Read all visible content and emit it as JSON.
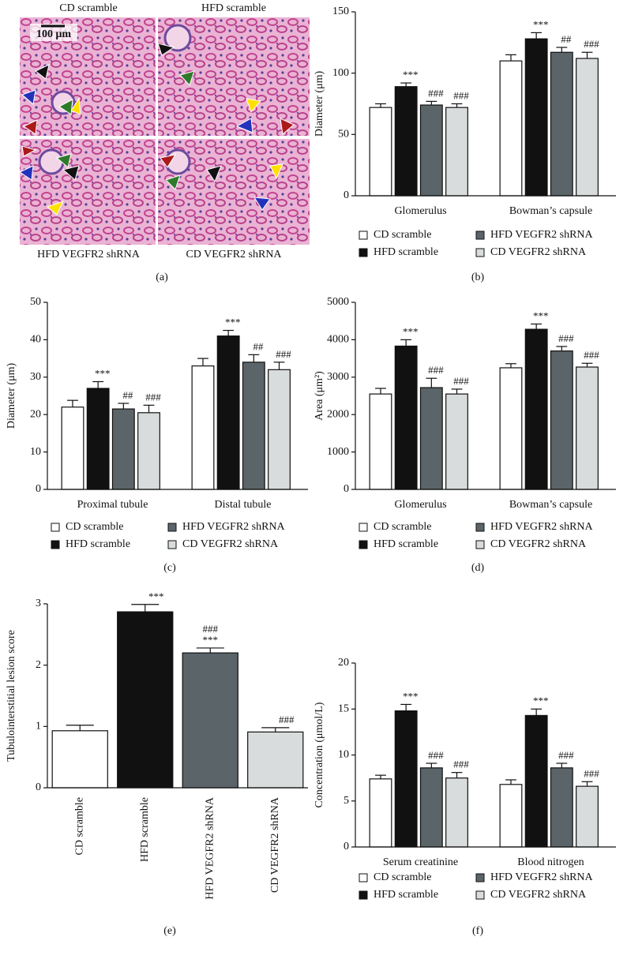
{
  "figure_a": {
    "labels": [
      "CD scramble",
      "HFD scramble",
      "HFD VEGFR2 shRNA",
      "CD VEGFR2 shRNA"
    ],
    "scale_bar": "100 μm",
    "caption": "(a)"
  },
  "chart_data": [
    {
      "type": "grouped_bar",
      "caption": "(b)",
      "y_label": "Diameter (μm)",
      "categories": [
        "Glomerulus",
        "Bowman’s capsule"
      ],
      "ylim": [
        0,
        150
      ],
      "yticks": [
        0,
        50,
        100,
        150
      ],
      "legend": "bottom",
      "series": [
        {
          "name": "CD scramble",
          "color": "#ffffff",
          "values": [
            72,
            110
          ],
          "errors": [
            3,
            5
          ]
        },
        {
          "name": "HFD scramble",
          "color": "#111111",
          "values": [
            89,
            128
          ],
          "errors": [
            3,
            5
          ],
          "annotations": [
            [
              "***"
            ],
            [
              "***"
            ]
          ]
        },
        {
          "name": "HFD VEGFR2 shRNA",
          "color": "#5a6469",
          "values": [
            74,
            117
          ],
          "errors": [
            3,
            4
          ],
          "annotations": [
            [
              "###"
            ],
            [
              "##"
            ]
          ]
        },
        {
          "name": "CD VEGFR2 shRNA",
          "color": "#d8dcdc",
          "values": [
            72,
            112
          ],
          "errors": [
            3,
            5
          ],
          "annotations": [
            [
              "###"
            ],
            [
              "###"
            ]
          ]
        }
      ]
    },
    {
      "type": "grouped_bar",
      "caption": "(c)",
      "y_label": "Diameter (μm)",
      "categories": [
        "Proximal tubule",
        "Distal tubule"
      ],
      "ylim": [
        0,
        50
      ],
      "yticks": [
        0,
        10,
        20,
        30,
        40,
        50
      ],
      "legend": "bottom",
      "series": [
        {
          "name": "CD scramble",
          "color": "#ffffff",
          "values": [
            22,
            33
          ],
          "errors": [
            1.8,
            2
          ]
        },
        {
          "name": "HFD scramble",
          "color": "#111111",
          "values": [
            27,
            41
          ],
          "errors": [
            1.8,
            1.5
          ],
          "annotations": [
            [
              "***"
            ],
            [
              "***"
            ]
          ]
        },
        {
          "name": "HFD VEGFR2 shRNA",
          "color": "#5a6469",
          "values": [
            21.5,
            34
          ],
          "errors": [
            1.5,
            2
          ],
          "annotations": [
            [
              "##"
            ],
            [
              "##"
            ]
          ]
        },
        {
          "name": "CD VEGFR2 shRNA",
          "color": "#d8dcdc",
          "values": [
            20.5,
            32
          ],
          "errors": [
            2,
            2
          ],
          "annotations": [
            [
              "###"
            ],
            [
              "###"
            ]
          ]
        }
      ]
    },
    {
      "type": "grouped_bar",
      "caption": "(d)",
      "y_label": "Area (μm²)",
      "categories": [
        "Glomerulus",
        "Bowman’s capsule"
      ],
      "ylim": [
        0,
        5000
      ],
      "yticks": [
        0,
        1000,
        2000,
        3000,
        4000,
        5000
      ],
      "legend": "bottom",
      "series": [
        {
          "name": "CD scramble",
          "color": "#ffffff",
          "values": [
            2550,
            3250
          ],
          "errors": [
            150,
            110
          ]
        },
        {
          "name": "HFD scramble",
          "color": "#111111",
          "values": [
            3830,
            4280
          ],
          "errors": [
            170,
            140
          ],
          "annotations": [
            [
              "***"
            ],
            [
              "***"
            ]
          ]
        },
        {
          "name": "HFD VEGFR2 shRNA",
          "color": "#5a6469",
          "values": [
            2720,
            3700
          ],
          "errors": [
            250,
            120
          ],
          "annotations": [
            [
              "###"
            ],
            [
              "###"
            ]
          ]
        },
        {
          "name": "CD VEGFR2 shRNA",
          "color": "#d8dcdc",
          "values": [
            2550,
            3270
          ],
          "errors": [
            130,
            100
          ],
          "annotations": [
            [
              "###"
            ],
            [
              "###"
            ]
          ]
        }
      ]
    },
    {
      "type": "bar",
      "caption": "(e)",
      "y_label": "Tubulointerstitial lesion score",
      "categories": [
        "CD scramble",
        "HFD scramble",
        "HFD VEGFR2 shRNA",
        "CD VEGFR2 shRNA"
      ],
      "values": [
        0.93,
        2.87,
        2.2,
        0.91
      ],
      "errors": [
        0.09,
        0.12,
        0.08,
        0.07
      ],
      "colors": [
        "#ffffff",
        "#111111",
        "#5a6469",
        "#d8dcdc"
      ],
      "annotations": [
        [],
        [
          "***"
        ],
        [
          "###",
          "***"
        ],
        [
          "###"
        ]
      ],
      "ylim": [
        0,
        3
      ],
      "yticks": [
        0,
        1,
        2,
        3
      ]
    },
    {
      "type": "grouped_bar",
      "caption": "(f)",
      "y_label": "Concentration (μmol/L)",
      "categories": [
        "Serum creatinine",
        "Blood nitrogen"
      ],
      "ylim": [
        0,
        20
      ],
      "yticks": [
        0,
        5,
        10,
        15,
        20
      ],
      "legend": "bottom",
      "series": [
        {
          "name": "CD scramble",
          "color": "#ffffff",
          "values": [
            7.4,
            6.8
          ],
          "errors": [
            0.4,
            0.5
          ]
        },
        {
          "name": "HFD scramble",
          "color": "#111111",
          "values": [
            14.8,
            14.3
          ],
          "errors": [
            0.7,
            0.7
          ],
          "annotations": [
            [
              "***"
            ],
            [
              "***"
            ]
          ]
        },
        {
          "name": "HFD VEGFR2 shRNA",
          "color": "#5a6469",
          "values": [
            8.6,
            8.6
          ],
          "errors": [
            0.5,
            0.5
          ],
          "annotations": [
            [
              "###"
            ],
            [
              "###"
            ]
          ]
        },
        {
          "name": "CD VEGFR2 shRNA",
          "color": "#d8dcdc",
          "values": [
            7.5,
            6.6
          ],
          "errors": [
            0.6,
            0.5
          ],
          "annotations": [
            [
              "###"
            ],
            [
              "###"
            ]
          ]
        }
      ]
    }
  ]
}
